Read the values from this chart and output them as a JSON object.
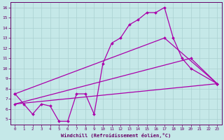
{
  "xlabel": "Windchill (Refroidissement éolien,°C)",
  "bg_color": "#c5e8e8",
  "line_color": "#aa00aa",
  "grid_color": "#aad0d0",
  "xlim": [
    -0.5,
    23.5
  ],
  "ylim": [
    4.5,
    16.5
  ],
  "xticks": [
    0,
    1,
    2,
    3,
    4,
    5,
    6,
    7,
    8,
    9,
    10,
    11,
    12,
    13,
    14,
    15,
    16,
    17,
    18,
    19,
    20,
    21,
    22,
    23
  ],
  "yticks": [
    5,
    6,
    7,
    8,
    9,
    10,
    11,
    12,
    13,
    14,
    15,
    16
  ],
  "series0_x": [
    0,
    1,
    2,
    3,
    4,
    5,
    6,
    7,
    8,
    9,
    10,
    11,
    12,
    13,
    14,
    15,
    16,
    17,
    18,
    19,
    20,
    23
  ],
  "series0_y": [
    7.5,
    6.5,
    5.5,
    6.5,
    6.3,
    4.8,
    4.8,
    7.5,
    7.5,
    5.5,
    10.5,
    12.5,
    13.0,
    14.3,
    14.8,
    15.5,
    15.5,
    16.0,
    13.0,
    11.0,
    10.0,
    8.5
  ],
  "series1_x": [
    0,
    23
  ],
  "series1_y": [
    6.5,
    8.5
  ],
  "series2_x": [
    0,
    20,
    23
  ],
  "series2_y": [
    6.5,
    11.0,
    8.5
  ],
  "series3_x": [
    0,
    17,
    23
  ],
  "series3_y": [
    7.5,
    13.0,
    8.5
  ]
}
